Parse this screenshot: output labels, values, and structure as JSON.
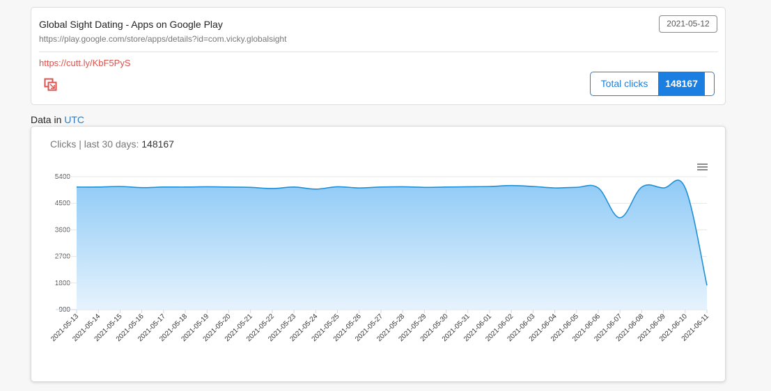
{
  "card": {
    "title": "Global Sight Dating - Apps on Google Play",
    "url": "https://play.google.com/store/apps/details?id=com.vicky.globalsight",
    "date": "2021-05-12",
    "short_link": "https://cutt.ly/KbF5PyS",
    "total_clicks_label": "Total clicks",
    "total_clicks": 148167
  },
  "timezone": {
    "label": "Data in",
    "zone": "UTC"
  },
  "chart_data": {
    "type": "area",
    "title": "Clicks | last 30 days:",
    "total": 148167,
    "x": [
      "2021-05-13",
      "2021-05-14",
      "2021-05-15",
      "2021-05-16",
      "2021-05-17",
      "2021-05-18",
      "2021-05-19",
      "2021-05-20",
      "2021-05-21",
      "2021-05-22",
      "2021-05-23",
      "2021-05-24",
      "2021-05-25",
      "2021-05-26",
      "2021-05-27",
      "2021-05-28",
      "2021-05-29",
      "2021-05-30",
      "2021-05-31",
      "2021-06-01",
      "2021-06-02",
      "2021-06-03",
      "2021-06-04",
      "2021-06-05",
      "2021-06-06",
      "2021-06-07",
      "2021-06-08",
      "2021-06-09",
      "2021-06-10",
      "2021-06-11"
    ],
    "values": [
      5050,
      5050,
      5070,
      5030,
      5050,
      5050,
      5060,
      5050,
      5040,
      5000,
      5050,
      4980,
      5060,
      5020,
      5050,
      5060,
      5040,
      5050,
      5060,
      5070,
      5100,
      5070,
      5020,
      5040,
      5020,
      4010,
      5050,
      5020,
      5020,
      1720
    ],
    "color": "#1f8fd6",
    "ylim": [
      900,
      5400
    ],
    "yticks": [
      900,
      1800,
      2700,
      3600,
      4500,
      5400
    ],
    "grid": true
  }
}
